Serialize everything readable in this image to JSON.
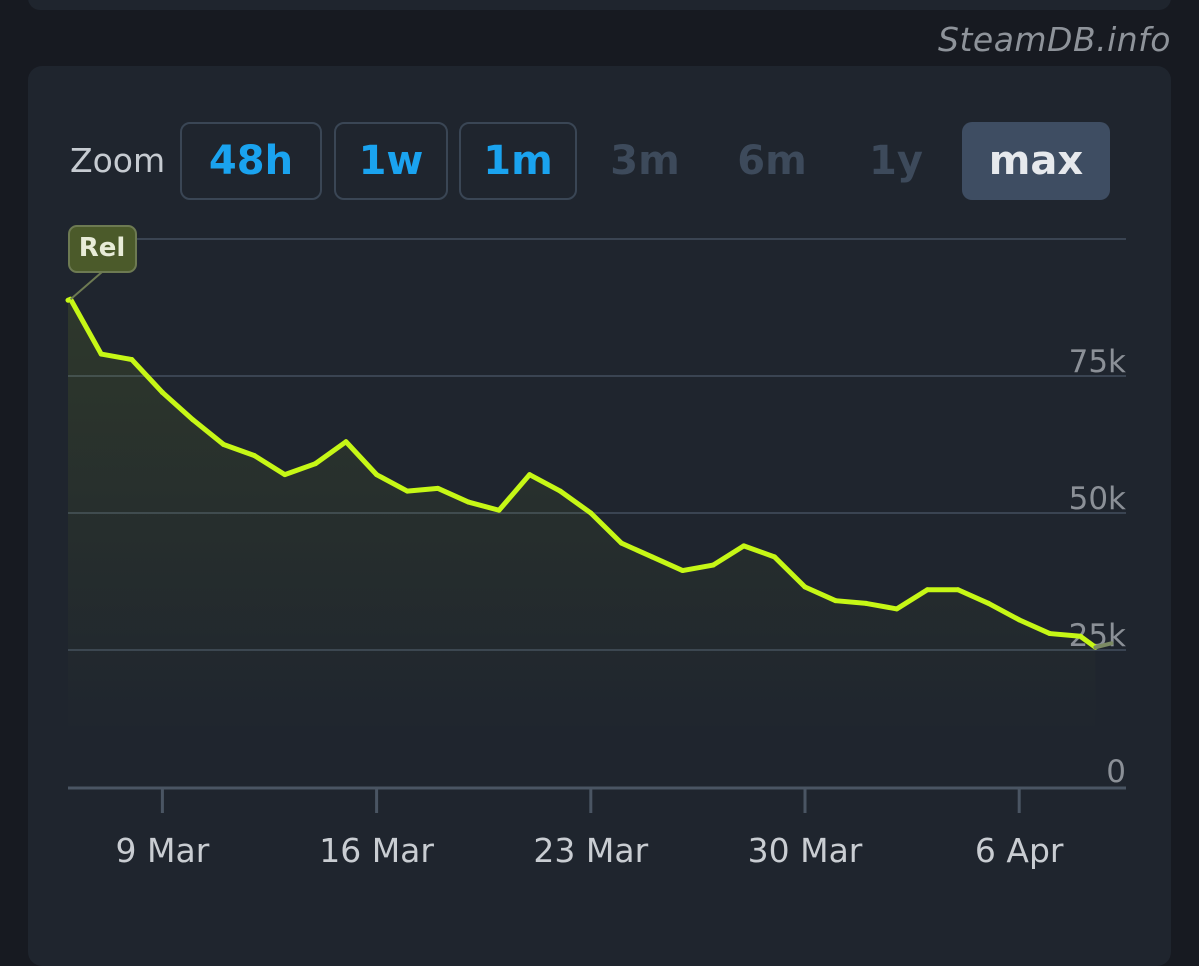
{
  "watermark": "SteamDB.info",
  "zoom": {
    "label": "Zoom",
    "buttons": [
      {
        "label": "48h",
        "state": "enabled"
      },
      {
        "label": "1w",
        "state": "enabled"
      },
      {
        "label": "1m",
        "state": "enabled"
      },
      {
        "label": "3m",
        "state": "disabled"
      },
      {
        "label": "6m",
        "state": "disabled"
      },
      {
        "label": "1y",
        "state": "disabled"
      },
      {
        "label": "max",
        "state": "selected"
      }
    ]
  },
  "colors": {
    "line": "#c6f716",
    "grid": "#3a4452",
    "background": "#1f252e",
    "flag": "#4b5a2a"
  },
  "chart_data": {
    "type": "area",
    "flag_label": "Rel",
    "x_ticks": [
      "9 Mar",
      "16 Mar",
      "23 Mar",
      "30 Mar",
      "6 Apr"
    ],
    "y_ticks": [
      "0",
      "25k",
      "50k",
      "75k"
    ],
    "ylim": [
      0,
      100000
    ],
    "xlim": [
      "2025-03-05",
      "2025-04-09"
    ],
    "grid": true,
    "x": [
      "2025-03-05",
      "2025-03-06",
      "2025-03-07",
      "2025-03-08",
      "2025-03-09",
      "2025-03-10",
      "2025-03-11",
      "2025-03-12",
      "2025-03-13",
      "2025-03-14",
      "2025-03-15",
      "2025-03-16",
      "2025-03-17",
      "2025-03-18",
      "2025-03-19",
      "2025-03-20",
      "2025-03-21",
      "2025-03-22",
      "2025-03-23",
      "2025-03-24",
      "2025-03-25",
      "2025-03-26",
      "2025-03-27",
      "2025-03-28",
      "2025-03-29",
      "2025-03-30",
      "2025-03-31",
      "2025-04-01",
      "2025-04-02",
      "2025-04-03",
      "2025-04-04",
      "2025-04-05",
      "2025-04-06",
      "2025-04-07",
      "2025-04-08"
    ],
    "series": [
      {
        "values": [
          87000,
          89000,
          79000,
          78000,
          72000,
          67000,
          62500,
          60500,
          57000,
          59000,
          63000,
          57000,
          54000,
          54500,
          52000,
          50500,
          57000,
          54000,
          50000,
          44500,
          42000,
          39500,
          40500,
          44000,
          42000,
          36500,
          34000,
          33500,
          32500,
          36000,
          36000,
          33500,
          30500,
          28000,
          27500
        ]
      }
    ],
    "last_value": 25500
  }
}
